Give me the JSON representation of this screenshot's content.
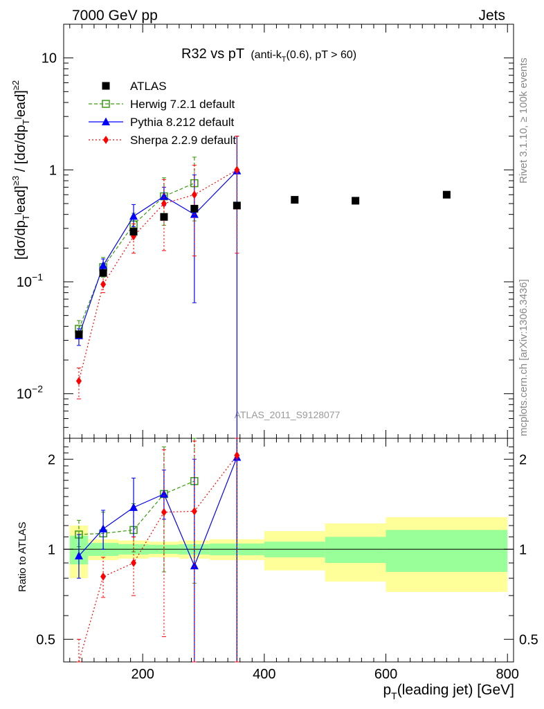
{
  "header": {
    "left": "7000 GeV pp",
    "right": "Jets"
  },
  "side_labels": {
    "rivet": "Rivet 3.1.10, ≥ 100k events",
    "mcplots": "mcplots.cern.ch [arXiv:1306.3436]"
  },
  "chart_data": {
    "type": "scatter",
    "title_main": "R32 vs pT",
    "title_sub_a": "(anti-k",
    "title_sub_sub": "T",
    "title_sub_b": "(0.6), pT > 60)",
    "watermark": "ATLAS_2011_S9128077",
    "ylabel_main": "[dσ/dpᵀead]≥3 / [dσ/dpᵀead]≥2",
    "ylabel_ratio": "Ratio to ATLAS",
    "xlabel": "p",
    "xlabel_sub": "T",
    "xlabel_rest": "(leading jet) [GeV]",
    "xlim": [
      70,
      810
    ],
    "ylim_main": [
      0.004,
      20
    ],
    "ylim_ratio": [
      0.42,
      2.35
    ],
    "yscale": "log",
    "grid": false,
    "legend_position": "top-left",
    "x_ticks": [
      "200",
      "400",
      "600",
      "800"
    ],
    "y_ticks_main": [
      "10",
      "1"
    ],
    "y_ticks_main_exp": [
      "10",
      "10"
    ],
    "y_ticks_main_exp_power": [
      "−1",
      "−2"
    ],
    "y_ticks_ratio": [
      "2",
      "1",
      "0.5"
    ],
    "series": [
      {
        "name": "ATLAS",
        "color": "#000000",
        "x": [
          95,
          135,
          185,
          235,
          285,
          355,
          450,
          550,
          700
        ],
        "y": [
          0.034,
          0.12,
          0.28,
          0.38,
          0.45,
          0.48,
          0.54,
          0.53,
          0.6
        ],
        "band_edges": [
          80,
          110,
          160,
          210,
          260,
          310,
          400,
          500,
          600,
          800
        ],
        "band_stat": [
          0.11,
          0.05,
          0.04,
          0.035,
          0.04,
          0.045,
          0.06,
          0.1,
          0.16
        ],
        "band_total": [
          0.2,
          0.08,
          0.07,
          0.06,
          0.07,
          0.08,
          0.15,
          0.22,
          0.28
        ]
      },
      {
        "name": "Herwig 7.2.1 default",
        "color": "#3a9a10",
        "x": [
          95,
          135,
          185,
          235,
          285
        ],
        "y": [
          0.038,
          0.135,
          0.325,
          0.58,
          0.76
        ],
        "err_lo": [
          0.033,
          0.11,
          0.25,
          0.32,
          0.35
        ],
        "err_hi": [
          0.045,
          0.165,
          0.41,
          0.85,
          1.3
        ]
      },
      {
        "name": "Pythia 8.212 default",
        "color": "#0000ff",
        "x": [
          95,
          135,
          185,
          235,
          285,
          355
        ],
        "y": [
          0.033,
          0.14,
          0.385,
          0.58,
          0.4,
          0.98
        ],
        "err_lo": [
          0.027,
          0.12,
          0.31,
          0.48,
          0.065,
          0.001
        ],
        "err_hi": [
          0.038,
          0.16,
          0.49,
          0.7,
          0.9,
          2.0
        ]
      },
      {
        "name": "Sherpa 2.2.9 default",
        "color": "#ff0000",
        "x": [
          95,
          135,
          185,
          235,
          285,
          355
        ],
        "y": [
          0.013,
          0.095,
          0.255,
          0.5,
          0.6,
          1.0
        ],
        "err_lo": [
          0.009,
          0.08,
          0.18,
          0.19,
          0.17,
          0.18
        ],
        "err_hi": [
          0.017,
          0.115,
          0.33,
          0.82,
          1.1,
          2.0
        ]
      }
    ],
    "ratio_series": [
      {
        "name": "Herwig 7.2.1 default",
        "y": [
          1.12,
          1.13,
          1.16,
          1.53,
          1.69
        ],
        "err_lo": [
          1.02,
          1.0,
          0.98,
          0.84,
          0.77
        ],
        "err_hi": [
          1.25,
          1.33,
          1.42,
          2.2,
          2.35
        ]
      },
      {
        "name": "Pythia 8.212 default",
        "y": [
          0.95,
          1.17,
          1.38,
          1.53,
          0.88,
          2.03
        ],
        "err_lo": [
          0.8,
          1.0,
          1.1,
          1.26,
          0.42,
          0.42
        ],
        "err_hi": [
          1.12,
          1.35,
          1.73,
          1.84,
          2.0,
          2.35
        ]
      },
      {
        "name": "Sherpa 2.2.9 default",
        "y": [
          0.4,
          0.81,
          0.9,
          1.33,
          1.34,
          2.06
        ],
        "err_lo": [
          0.3,
          0.69,
          0.7,
          0.51,
          0.42,
          0.42
        ],
        "err_hi": [
          0.5,
          0.94,
          1.1,
          2.15,
          2.3,
          2.35
        ]
      }
    ]
  }
}
